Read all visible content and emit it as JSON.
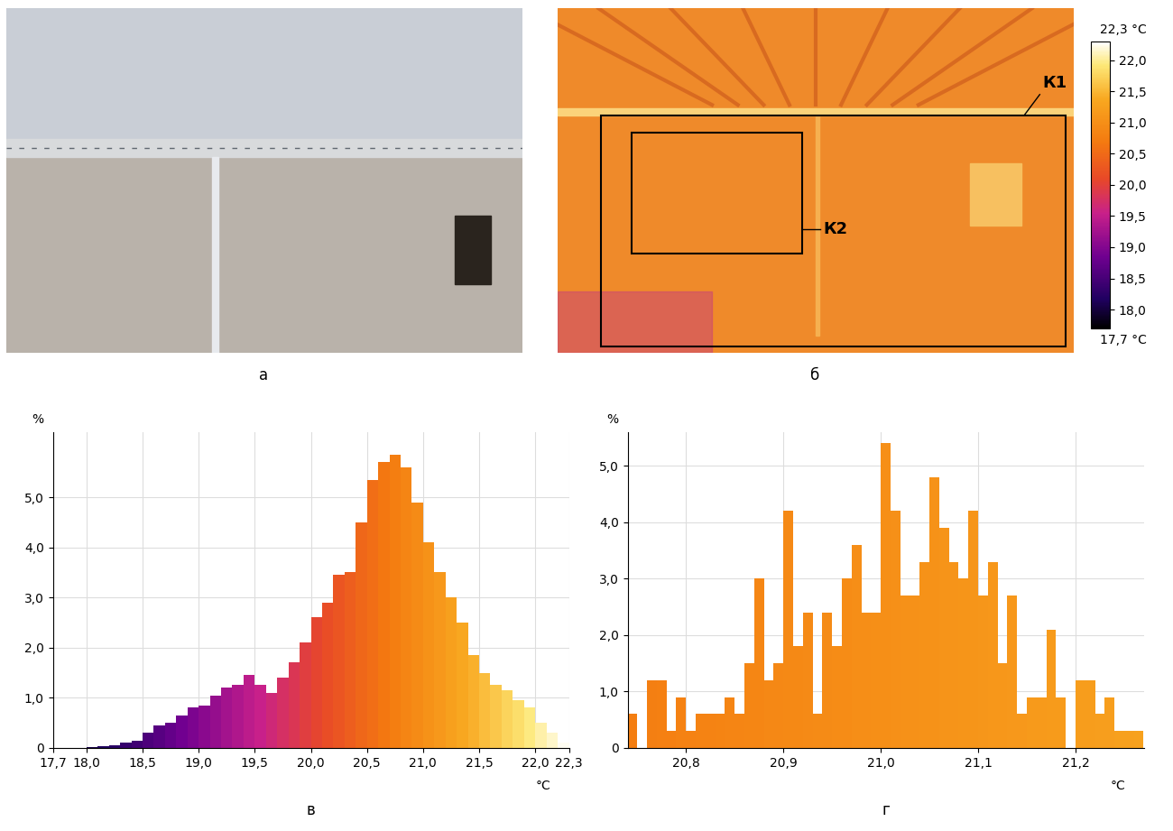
{
  "photo": {
    "caption": "а"
  },
  "thermogram": {
    "caption": "б",
    "regions": [
      {
        "label": "К1"
      },
      {
        "label": "К2"
      }
    ],
    "colorbar": {
      "range": [
        17.7,
        22.3
      ],
      "range_labels": [
        "17,7 °C",
        "22,3 °C"
      ],
      "ticks": [
        {
          "value": 18.0,
          "label": "18,0"
        },
        {
          "value": 18.5,
          "label": "18,5"
        },
        {
          "value": 19.0,
          "label": "19,0"
        },
        {
          "value": 19.5,
          "label": "19,5"
        },
        {
          "value": 20.0,
          "label": "20,0"
        },
        {
          "value": 20.5,
          "label": "20,5"
        },
        {
          "value": 21.0,
          "label": "21,0"
        },
        {
          "value": 21.5,
          "label": "21,5"
        },
        {
          "value": 22.0,
          "label": "22,0"
        }
      ]
    }
  },
  "chart_data": [
    {
      "type": "histogram",
      "caption": "в",
      "x_label": "°C",
      "y_label": "%",
      "bins": [
        17.7,
        17.8,
        17.9,
        18.0,
        18.1,
        18.2,
        18.3,
        18.4,
        18.5,
        18.6,
        18.7,
        18.8,
        18.9,
        19.0,
        19.1,
        19.2,
        19.3,
        19.4,
        19.5,
        19.6,
        19.7,
        19.8,
        19.9,
        20.0,
        20.1,
        20.2,
        20.3,
        20.4,
        20.5,
        20.6,
        20.7,
        20.8,
        20.9,
        21.0,
        21.1,
        21.2,
        21.3,
        21.4,
        21.5,
        21.6,
        21.7,
        21.8,
        21.9,
        22.0,
        22.1,
        22.2,
        22.3
      ],
      "values": [
        0.0,
        0.0,
        0.0,
        0.02,
        0.03,
        0.05,
        0.1,
        0.15,
        0.3,
        0.45,
        0.5,
        0.65,
        0.8,
        0.85,
        1.05,
        1.2,
        1.25,
        1.45,
        1.25,
        1.1,
        1.4,
        1.7,
        2.1,
        2.6,
        2.9,
        3.45,
        3.5,
        4.5,
        5.35,
        5.7,
        5.85,
        5.6,
        4.9,
        4.1,
        3.5,
        3.0,
        2.5,
        1.85,
        1.5,
        1.25,
        1.15,
        0.95,
        0.8,
        0.5,
        0.3,
        0.1
      ],
      "xlim": [
        17.7,
        22.3
      ],
      "xticks": [
        {
          "value": 17.7,
          "label": "17,7"
        },
        {
          "value": 18.0,
          "label": "18,0"
        },
        {
          "value": 18.5,
          "label": "18,5"
        },
        {
          "value": 19.0,
          "label": "19,0"
        },
        {
          "value": 19.5,
          "label": "19,5"
        },
        {
          "value": 20.0,
          "label": "20,0"
        },
        {
          "value": 20.5,
          "label": "20,5"
        },
        {
          "value": 21.0,
          "label": "21,0"
        },
        {
          "value": 21.5,
          "label": "21,5"
        },
        {
          "value": 22.0,
          "label": "22,0"
        },
        {
          "value": 22.3,
          "label": "22,3"
        }
      ],
      "ylim": [
        0,
        6.3
      ],
      "yticks": [
        0,
        {
          "value": 1,
          "label": "1,0"
        },
        {
          "value": 2,
          "label": "2,0"
        },
        {
          "value": 3,
          "label": "3,0"
        },
        {
          "value": 4,
          "label": "4,0"
        },
        {
          "value": 5,
          "label": "5,0"
        }
      ],
      "grid": true
    },
    {
      "type": "histogram",
      "caption": "г",
      "x_label": "°C",
      "y_label": "%",
      "bins": [
        20.74,
        20.75,
        20.76,
        20.77,
        20.78,
        20.79,
        20.8,
        20.81,
        20.82,
        20.83,
        20.84,
        20.85,
        20.86,
        20.87,
        20.88,
        20.89,
        20.9,
        20.91,
        20.92,
        20.93,
        20.94,
        20.95,
        20.96,
        20.97,
        20.98,
        20.99,
        21.0,
        21.01,
        21.02,
        21.03,
        21.04,
        21.05,
        21.06,
        21.07,
        21.08,
        21.09,
        21.1,
        21.11,
        21.12,
        21.13,
        21.14,
        21.15,
        21.16,
        21.17,
        21.18,
        21.19,
        21.2,
        21.21,
        21.22,
        21.23,
        21.24,
        21.25,
        21.26,
        21.27
      ],
      "values": [
        0.6,
        0,
        1.2,
        1.2,
        0.3,
        0.9,
        0.3,
        0.6,
        0.6,
        0.6,
        0.9,
        0.6,
        1.5,
        3.0,
        1.2,
        1.5,
        4.2,
        1.8,
        2.4,
        0.6,
        2.4,
        1.8,
        3.0,
        3.6,
        2.4,
        2.4,
        5.4,
        4.2,
        2.7,
        2.7,
        3.3,
        4.8,
        3.9,
        3.3,
        3.0,
        4.2,
        2.7,
        3.3,
        1.5,
        2.7,
        0.6,
        0.9,
        0.9,
        2.1,
        0.9,
        0,
        1.2,
        1.2,
        0.6,
        0.9,
        0.3,
        0.3,
        0.3
      ],
      "xlim": [
        20.74,
        21.27
      ],
      "xticks": [
        {
          "value": 20.8,
          "label": "20,8"
        },
        {
          "value": 20.9,
          "label": "20,9"
        },
        {
          "value": 21.0,
          "label": "21,0"
        },
        {
          "value": 21.1,
          "label": "21,1"
        },
        {
          "value": 21.2,
          "label": "21,2"
        }
      ],
      "ylim": [
        0,
        5.6
      ],
      "yticks": [
        0,
        {
          "value": 1,
          "label": "1,0"
        },
        {
          "value": 2,
          "label": "2,0"
        },
        {
          "value": 3,
          "label": "3,0"
        },
        {
          "value": 4,
          "label": "4,0"
        },
        {
          "value": 5,
          "label": "5,0"
        }
      ],
      "grid": true
    }
  ]
}
